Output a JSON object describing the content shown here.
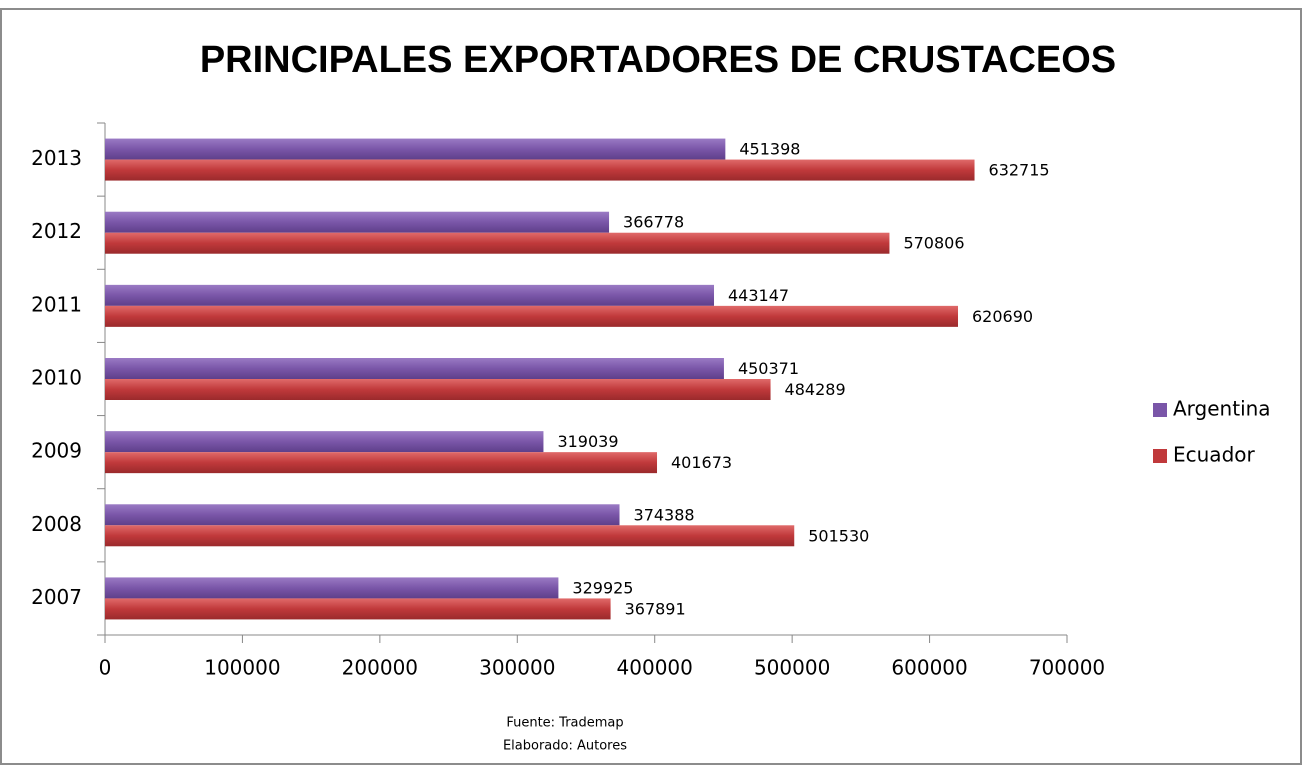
{
  "chart_data": {
    "type": "barh",
    "title": "PRINCIPALES EXPORTADORES DE CRUSTACEOS",
    "categories": [
      "2007",
      "2008",
      "2009",
      "2010",
      "2011",
      "2012",
      "2013"
    ],
    "series": [
      {
        "name": "Argentina",
        "color": "#7a56a8",
        "values": [
          329925,
          374388,
          319039,
          450371,
          443147,
          366778,
          451398
        ]
      },
      {
        "name": "Ecuador",
        "color": "#c0393b",
        "values": [
          367891,
          501530,
          401673,
          484289,
          620690,
          570806,
          632715
        ]
      }
    ],
    "xlim": [
      0,
      700000
    ],
    "xticks": [
      0,
      100000,
      200000,
      300000,
      400000,
      500000,
      600000,
      700000
    ],
    "legend": "right",
    "source": "Fuente: Trademap",
    "credit": "Elaborado: Autores"
  }
}
